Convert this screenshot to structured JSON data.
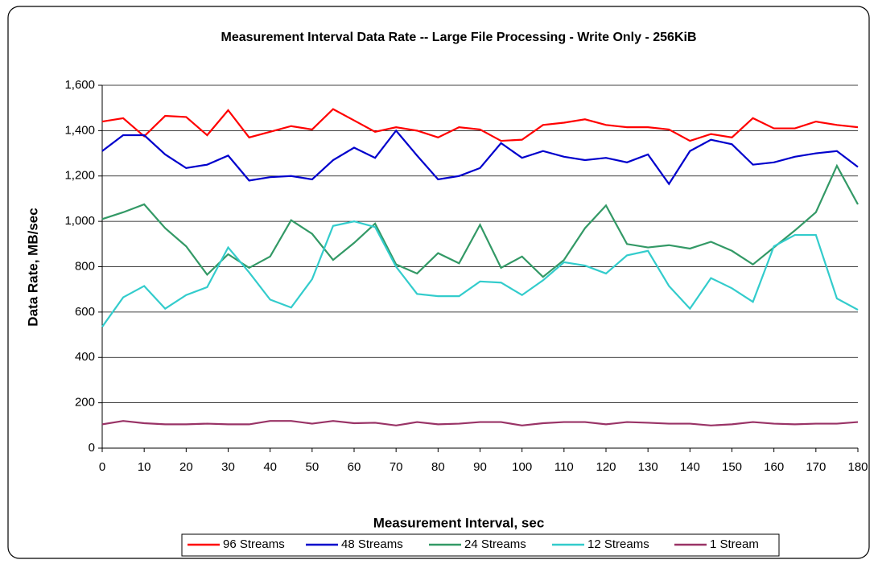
{
  "chart_data": {
    "type": "line",
    "title": "Measurement Interval Data Rate -- Large File Processing - Write Only - 256KiB",
    "x_label": "Measurement Interval, sec",
    "y_label": "Data Rate, MB/sec",
    "x": [
      0,
      5,
      10,
      15,
      20,
      25,
      30,
      35,
      40,
      45,
      50,
      55,
      60,
      65,
      70,
      75,
      80,
      85,
      90,
      95,
      100,
      105,
      110,
      115,
      120,
      125,
      130,
      135,
      140,
      145,
      150,
      155,
      160,
      165,
      170,
      175,
      180
    ],
    "xlim": [
      0,
      180
    ],
    "xticks": [
      0,
      10,
      20,
      30,
      40,
      50,
      60,
      70,
      80,
      90,
      100,
      110,
      120,
      130,
      140,
      150,
      160,
      170,
      180
    ],
    "ylim": [
      0,
      1600
    ],
    "yticks": [
      0,
      200,
      400,
      600,
      800,
      {
        "value": 1000,
        "label": "1,000"
      },
      {
        "value": 1200,
        "label": "1,200"
      },
      {
        "value": 1400,
        "label": "1,400"
      },
      {
        "value": 1600,
        "label": "1,600"
      }
    ],
    "grid": true,
    "legend": "bottom",
    "series": [
      {
        "name": "96 Streams",
        "color": "#ff0000",
        "values": [
          1440,
          1455,
          1375,
          1465,
          1460,
          1380,
          1490,
          1370,
          1395,
          1420,
          1405,
          1495,
          1445,
          1395,
          1415,
          1400,
          1370,
          1415,
          1405,
          1355,
          1360,
          1425,
          1435,
          1450,
          1425,
          1415,
          1415,
          1405,
          1355,
          1385,
          1370,
          1455,
          1410,
          1410,
          1440,
          1425,
          1415
        ]
      },
      {
        "name": "48 Streams",
        "color": "#0000cc",
        "values": [
          1310,
          1380,
          1380,
          1295,
          1235,
          1250,
          1290,
          1180,
          1195,
          1200,
          1185,
          1270,
          1325,
          1280,
          1400,
          1290,
          1185,
          1200,
          1235,
          1345,
          1280,
          1310,
          1285,
          1270,
          1280,
          1260,
          1295,
          1165,
          1310,
          1360,
          1340,
          1250,
          1260,
          1285,
          1300,
          1310,
          1240
        ]
      },
      {
        "name": "24 Streams",
        "color": "#339966",
        "values": [
          1010,
          1040,
          1075,
          970,
          890,
          765,
          855,
          795,
          845,
          1005,
          945,
          830,
          905,
          990,
          810,
          770,
          860,
          815,
          985,
          795,
          845,
          755,
          830,
          970,
          1070,
          900,
          885,
          895,
          880,
          910,
          870,
          810,
          885,
          960,
          1040,
          1245,
          1075
        ]
      },
      {
        "name": "12 Streams",
        "color": "#33cccc",
        "values": [
          535,
          665,
          715,
          615,
          675,
          710,
          885,
          775,
          655,
          620,
          745,
          980,
          1000,
          975,
          800,
          680,
          670,
          670,
          735,
          730,
          675,
          740,
          820,
          805,
          770,
          850,
          870,
          715,
          615,
          750,
          705,
          645,
          890,
          940,
          940,
          660,
          610
        ]
      },
      {
        "name": "1 Stream",
        "color": "#993366",
        "values": [
          105,
          120,
          110,
          105,
          105,
          108,
          105,
          105,
          120,
          120,
          108,
          120,
          110,
          112,
          100,
          115,
          105,
          108,
          115,
          115,
          100,
          110,
          115,
          115,
          105,
          115,
          112,
          108,
          108,
          100,
          105,
          115,
          108,
          105,
          108,
          108,
          115
        ]
      }
    ]
  }
}
